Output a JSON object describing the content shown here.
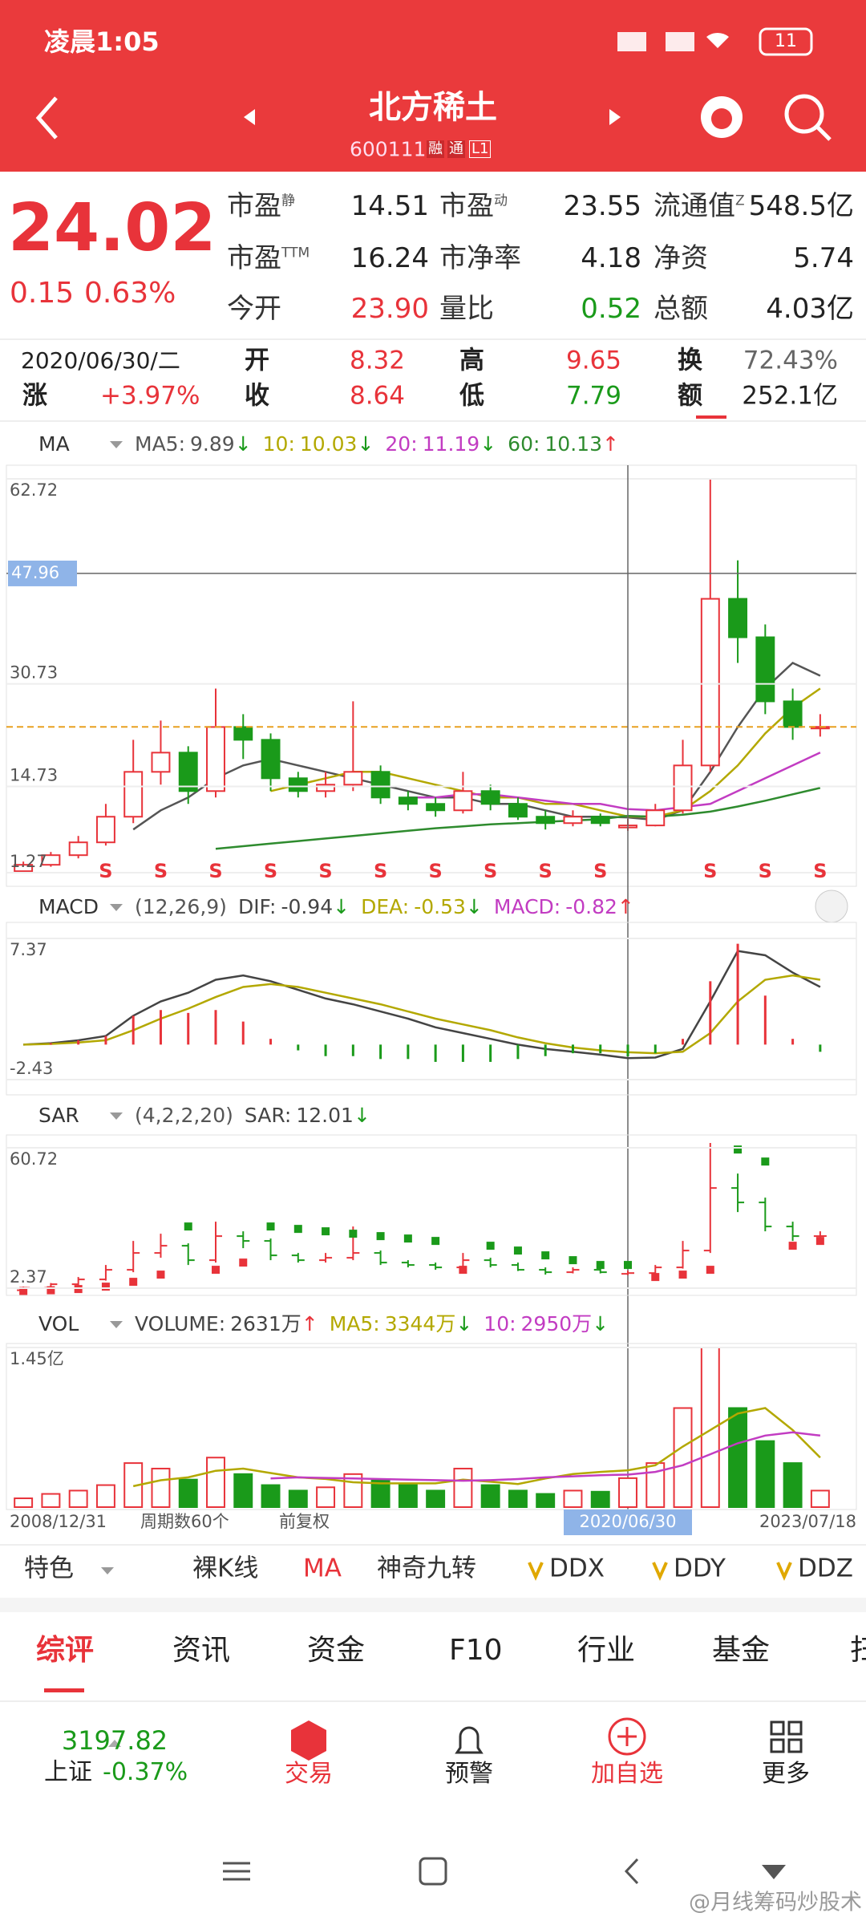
{
  "status_bar": {
    "time": "凌晨1:05",
    "battery": "11"
  },
  "header": {
    "title": "北方稀土",
    "code": "600111",
    "badges": [
      "融",
      "通",
      "L1"
    ]
  },
  "quote": {
    "price": "24.02",
    "change": "0.15",
    "change_pct": "0.63%",
    "metrics": [
      [
        {
          "label": "市盈",
          "sup": "静",
          "value": "14.51"
        },
        {
          "label": "市盈",
          "sup": "动",
          "value": "23.55"
        },
        {
          "label": "流通值",
          "sup": "Z",
          "value": "548.5亿"
        }
      ],
      [
        {
          "label": "市盈",
          "sup": "TTM",
          "value": "16.24"
        },
        {
          "label": "市净率",
          "value": "4.18"
        },
        {
          "label": "净资",
          "value": "5.74"
        }
      ],
      [
        {
          "label": "今开",
          "value": "23.90"
        },
        {
          "label": "量比",
          "value": "0.52"
        },
        {
          "label": "总额",
          "value": "4.03亿"
        }
      ]
    ]
  },
  "day": {
    "date": "2020/06/30/二",
    "change_label": "涨",
    "change": "+3.97%",
    "open_label": "开",
    "open": "8.32",
    "close_label": "收",
    "close": "8.64",
    "high_label": "高",
    "high": "9.65",
    "low_label": "低",
    "low": "7.79",
    "turnover_label": "换",
    "turnover": "72.43%",
    "amount_label": "额",
    "amount": "252.1亿"
  },
  "periods": {
    "categories": [
      "2008/12/31",
      null,
      null,
      null,
      null,
      null,
      null,
      null,
      null,
      null,
      null,
      null,
      null,
      null,
      null,
      null,
      null,
      null,
      null,
      null,
      null,
      null,
      "2020/06/30",
      null,
      null,
      null,
      null,
      null,
      null,
      "2023/07/18"
    ],
    "selected": "2020/06/30",
    "count_label": "周期数60个",
    "adjust_label": "前复权"
  },
  "kline": {
    "type": "candlestick",
    "name": "MA",
    "ylim": [
      1.27,
      62.72
    ],
    "yticks": [
      62.72,
      30.73,
      14.73,
      1.27
    ],
    "crosshair": 47.96,
    "price_line": 24.02,
    "candles": [
      [
        1.5,
        2.5,
        3,
        1.3
      ],
      [
        2.5,
        4,
        4.5,
        2.2
      ],
      [
        4,
        6,
        7,
        3.5
      ],
      [
        6,
        10,
        12,
        5.5
      ],
      [
        10,
        17,
        22,
        9
      ],
      [
        17,
        20,
        25,
        15
      ],
      [
        20,
        14,
        21,
        12
      ],
      [
        14,
        24,
        30,
        13
      ],
      [
        24,
        22,
        26,
        19
      ],
      [
        22,
        16,
        23,
        14
      ],
      [
        16,
        14,
        17,
        13
      ],
      [
        14,
        15,
        17,
        13
      ],
      [
        15,
        17,
        28,
        14
      ],
      [
        17,
        13,
        18,
        12
      ],
      [
        13,
        12,
        14,
        11
      ],
      [
        12,
        11,
        13,
        10
      ],
      [
        11,
        14,
        17,
        10.5
      ],
      [
        14,
        12,
        15,
        11
      ],
      [
        12,
        10,
        13,
        9.5
      ],
      [
        10,
        9,
        11,
        8
      ],
      [
        9,
        10,
        11,
        8.5
      ],
      [
        10,
        9,
        10.5,
        8.5
      ],
      [
        8.32,
        8.64,
        9.65,
        7.79
      ],
      [
        8.64,
        11,
        12,
        8.5
      ],
      [
        11,
        18,
        22,
        10.5
      ],
      [
        18,
        44,
        62.72,
        17
      ],
      [
        44,
        38,
        50,
        34
      ],
      [
        38,
        28,
        40,
        26
      ],
      [
        28,
        24,
        30,
        22
      ],
      [
        24,
        24.02,
        26,
        22.5
      ]
    ],
    "signals": [
      null,
      null,
      null,
      "S",
      null,
      "S",
      null,
      "S",
      null,
      "S",
      null,
      "S",
      null,
      "S",
      null,
      "S",
      null,
      "S",
      null,
      "S",
      null,
      "S",
      null,
      null,
      null,
      "S",
      null,
      "S",
      null,
      "S"
    ],
    "series": [
      {
        "name": "MA5:",
        "legend_value": "9.89",
        "arrow": "↓",
        "color": "#555555",
        "values": [
          null,
          null,
          null,
          null,
          8,
          11,
          13,
          16,
          18,
          19,
          18,
          17,
          16,
          15,
          14,
          13,
          13,
          12,
          12,
          11,
          10,
          10,
          9.89,
          9.5,
          11,
          17,
          24,
          30,
          34,
          32
        ]
      },
      {
        "name": "10:",
        "legend_value": "10.03",
        "arrow": "↓",
        "color": "#b3a800",
        "values": [
          null,
          null,
          null,
          null,
          null,
          null,
          null,
          null,
          null,
          14,
          15,
          16,
          17,
          17,
          16,
          15,
          14,
          13,
          13,
          12,
          12,
          11,
          10.03,
          10,
          11,
          14,
          18,
          23,
          27,
          30
        ]
      },
      {
        "name": "20:",
        "legend_value": "11.19",
        "arrow": "↓",
        "color": "#c23cc2",
        "values": [
          null,
          null,
          null,
          null,
          null,
          null,
          null,
          null,
          null,
          null,
          null,
          null,
          null,
          null,
          13,
          13,
          13.5,
          13.5,
          13,
          12.5,
          12,
          12,
          11.19,
          11,
          11.5,
          12,
          14,
          16,
          18,
          20
        ]
      },
      {
        "name": "60:",
        "legend_value": "10.13",
        "arrow": "↑",
        "color": "#2e8b2e",
        "values": [
          null,
          null,
          null,
          null,
          null,
          null,
          null,
          5,
          5.4,
          5.8,
          6.2,
          6.6,
          7,
          7.4,
          7.8,
          8.2,
          8.5,
          8.8,
          9,
          9.2,
          9.4,
          9.6,
          10.13,
          10,
          10.3,
          10.8,
          11.6,
          12.5,
          13.5,
          14.5
        ]
      }
    ]
  },
  "macd": {
    "type": "macd",
    "name": "MACD",
    "params": "(12,26,9)",
    "ylim": [
      -2.43,
      7.37
    ],
    "yticks": [
      7.37,
      -2.43
    ],
    "series": [
      {
        "name": "DIF:",
        "legend_value": "-0.94",
        "arrow": "↓",
        "color": "#444444",
        "values": [
          0,
          0.1,
          0.3,
          0.6,
          2,
          3,
          3.6,
          4.5,
          4.8,
          4.4,
          3.8,
          3.2,
          2.8,
          2.3,
          1.8,
          1.2,
          0.8,
          0.4,
          0,
          -0.3,
          -0.5,
          -0.7,
          -0.94,
          -0.9,
          -0.3,
          3,
          6.5,
          6.2,
          5,
          4
        ]
      },
      {
        "name": "DEA:",
        "legend_value": "-0.53",
        "arrow": "↓",
        "color": "#b3a800",
        "values": [
          0,
          0.05,
          0.15,
          0.3,
          1,
          1.8,
          2.5,
          3.3,
          4,
          4.2,
          4,
          3.6,
          3.2,
          2.8,
          2.3,
          1.8,
          1.4,
          1,
          0.5,
          0.1,
          -0.2,
          -0.4,
          -0.53,
          -0.6,
          -0.5,
          0.8,
          3,
          4.5,
          4.8,
          4.5
        ]
      },
      {
        "name": "MACD:",
        "legend_value": "-0.82",
        "arrow": "↑",
        "color": "#c23cc2",
        "type": "bar",
        "values": [
          0,
          0.1,
          0.3,
          0.6,
          2,
          2.4,
          2.2,
          2.4,
          1.6,
          0.4,
          -0.4,
          -0.8,
          -0.8,
          -1,
          -1,
          -1.2,
          -1.2,
          -1.2,
          -1,
          -0.8,
          -0.6,
          -0.6,
          -0.82,
          -0.6,
          0.4,
          4.4,
          7,
          3.4,
          0.4,
          -0.5
        ]
      }
    ]
  },
  "sar": {
    "type": "sar",
    "name": "SAR",
    "params": "(4,2,2,20)",
    "ylim": [
      2.37,
      60.72
    ],
    "yticks": [
      60.72,
      2.37
    ],
    "series": [
      {
        "name": "SAR:",
        "legend_value": "12.01",
        "arrow": "↓",
        "color": "#444444",
        "values": [
          1.2,
          1.5,
          2,
          3,
          5,
          8,
          28,
          10,
          13,
          28,
          27,
          26,
          25,
          24,
          23,
          22,
          10,
          20,
          18,
          16,
          14,
          12,
          12.01,
          7,
          8,
          10,
          60,
          55,
          20,
          22
        ]
      }
    ]
  },
  "vol": {
    "type": "volume",
    "name": "VOL",
    "ylim": [
      0,
      14500
    ],
    "yticks": [
      {
        "value": 14500,
        "label": "1.45亿"
      }
    ],
    "series": [
      {
        "name": "VOLUME:",
        "legend_value": "2631万",
        "arrow": "↑",
        "color": "#444444",
        "type": "bar",
        "values": [
          800,
          1200,
          1500,
          2000,
          4000,
          3500,
          2500,
          4500,
          3000,
          2000,
          1500,
          1800,
          3000,
          2500,
          2000,
          1500,
          3500,
          2000,
          1500,
          1200,
          1500,
          1400,
          2631,
          4000,
          9000,
          14500,
          9000,
          6000,
          4000,
          1500
        ]
      },
      {
        "name": "MA5:",
        "legend_value": "3344万",
        "arrow": "↓",
        "color": "#b3a800",
        "values": [
          null,
          null,
          null,
          null,
          1900,
          2440,
          2700,
          3300,
          3500,
          3100,
          2700,
          2560,
          2260,
          2160,
          2160,
          2160,
          2500,
          2300,
          2100,
          2600,
          3000,
          3200,
          3344,
          3800,
          5500,
          7000,
          8500,
          9000,
          7000,
          4500
        ]
      },
      {
        "name": "10:",
        "legend_value": "2950万",
        "arrow": "↓",
        "color": "#c23cc2",
        "values": [
          null,
          null,
          null,
          null,
          null,
          null,
          null,
          null,
          null,
          2600,
          2700,
          2650,
          2600,
          2550,
          2500,
          2450,
          2400,
          2450,
          2550,
          2700,
          2800,
          2900,
          2950,
          3200,
          3800,
          4800,
          5800,
          6500,
          6800,
          6500
        ]
      }
    ]
  },
  "indicator_tabs": [
    "特色",
    "裸K线",
    "MA",
    "神奇九转",
    "DDX",
    "DDY",
    "DDZ"
  ],
  "main_tabs": [
    "综评",
    "资讯",
    "资金",
    "F10",
    "行业",
    "基金",
    "扫"
  ],
  "bottom_bar": {
    "index_value": "3197.82",
    "index_name": "上证",
    "index_change": "-0.37%",
    "actions": [
      "交易",
      "预警",
      "加自选",
      "更多"
    ]
  },
  "watermark": "@月线筹码炒股术"
}
